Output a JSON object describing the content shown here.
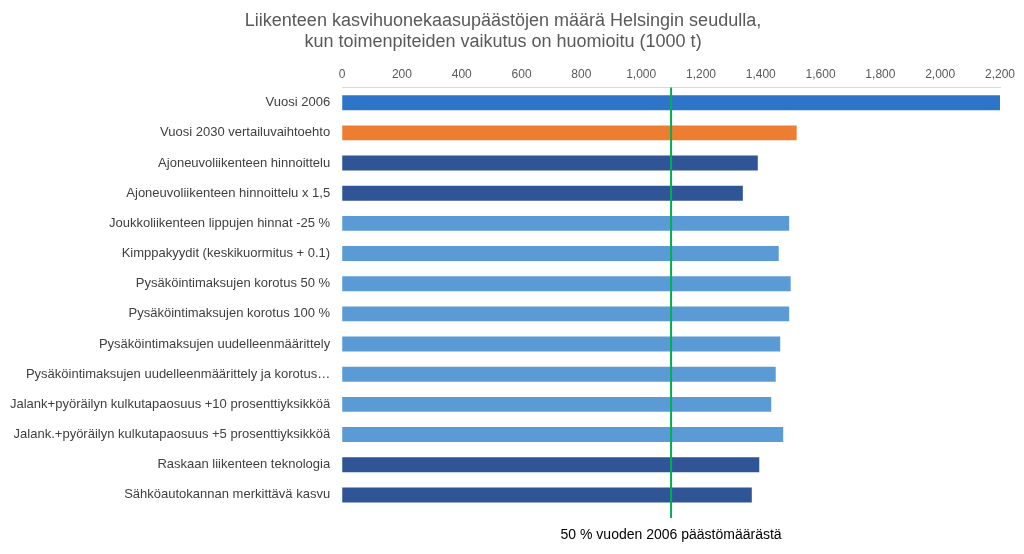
{
  "chart_data": {
    "type": "bar",
    "orientation": "horizontal",
    "title": "Liikenteen kasvihuonekaasupäästöjen määrä Helsingin seudulla,\nkun toimenpiteiden vaikutus on huomioitu (1000 t)",
    "categories": [
      "Vuosi 2006",
      "Vuosi 2030 vertailuvaihtoehto",
      "Ajoneuvoliikenteen hinnoittelu",
      "Ajoneuvoliikenteen hinnoittelu x 1,5",
      "Joukkoliikenteen lippujen hinnat -25 %",
      "Kimppakyydit (keskikuormitus + 0.1)",
      "Pysäköintimaksujen korotus 50 %",
      "Pysäköintimaksujen korotus 100 %",
      "Pysäköintimaksujen uudelleenmäärittely",
      "Pysäköintimaksujen uudelleenmäärittely ja korotus…",
      "Jalank+pyöräilyn kulkutapaosuus +10 prosenttiyksikköä",
      "Jalank.+pyöräilyn kulkutapaosuus +5 prosenttiyksikköä",
      "Raskaan liikenteen teknologia",
      "Sähköautokannan merkittävä kasvu"
    ],
    "values": [
      2200,
      1520,
      1390,
      1340,
      1495,
      1460,
      1500,
      1495,
      1465,
      1450,
      1435,
      1475,
      1395,
      1370
    ],
    "colors": [
      "#2e75c9",
      "#ed7d31",
      "#2f5597",
      "#2f5597",
      "#5b9bd5",
      "#5b9bd5",
      "#5b9bd5",
      "#5b9bd5",
      "#5b9bd5",
      "#5b9bd5",
      "#5b9bd5",
      "#5b9bd5",
      "#2f5597",
      "#2f5597"
    ],
    "xlim": [
      0,
      2200
    ],
    "xticks": [
      0,
      200,
      400,
      600,
      800,
      1000,
      1200,
      1400,
      1600,
      1800,
      2000,
      2200
    ],
    "grid": false,
    "reference_line": {
      "value": 1100,
      "label": "50 % vuoden 2006 päästömäärästä",
      "color": "#00b050"
    }
  }
}
